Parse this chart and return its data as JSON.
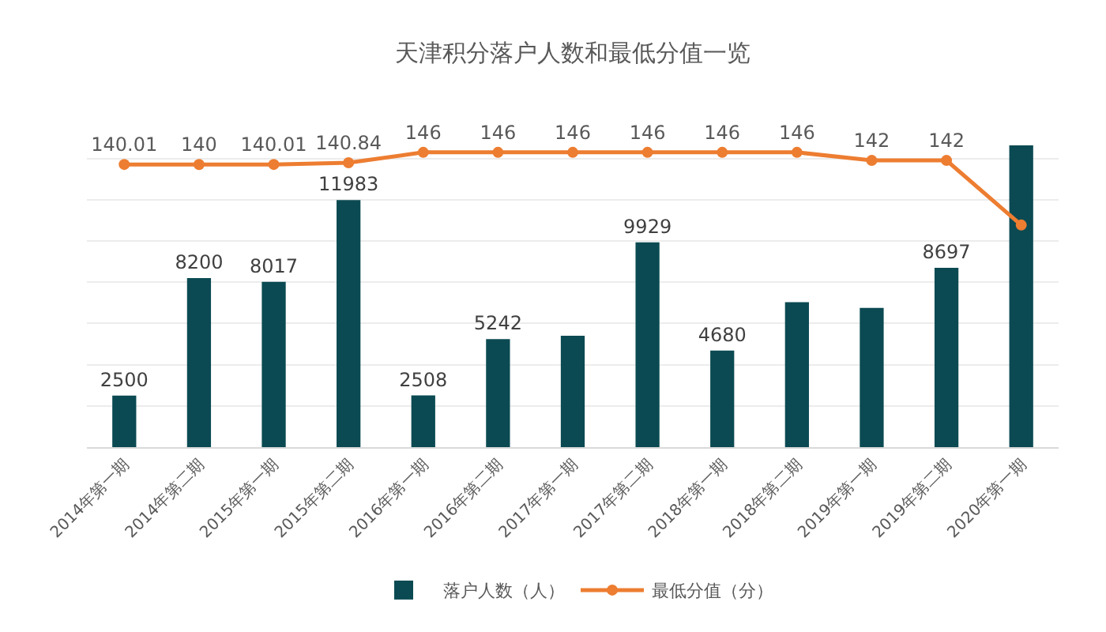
{
  "chart_data": {
    "type": "bar",
    "title": "天津积分落户人数和最低分值一览",
    "categories": [
      "2014年第一期",
      "2014年第二期",
      "2015年第一期",
      "2015年第二期",
      "2016年第一期",
      "2016年第二期",
      "2017年第一期",
      "2017年第二期",
      "2018年第一期",
      "2018年第二期",
      "2019年第一期",
      "2019年第二期",
      "2020年第一期"
    ],
    "series": [
      {
        "name": "落户人数（人）",
        "color": "#0b4a52",
        "values": [
          2500,
          8200,
          8017,
          11983,
          2508,
          5242,
          5400,
          9929,
          4680,
          7030,
          6750,
          8697,
          14630
        ],
        "value_labels": [
          "2500",
          "8200",
          "8017",
          "11983",
          "2508",
          "5242",
          null,
          "9929",
          "4680",
          null,
          null,
          "8697",
          null
        ]
      },
      {
        "name": "最低分值（分）",
        "type": "line",
        "axis": "y2",
        "color": "#ed7d31",
        "values": [
          140.01,
          140,
          140.01,
          140.84,
          146,
          146,
          146,
          146,
          146,
          146,
          142,
          142,
          110
        ],
        "value_labels": [
          "140.01",
          "140",
          "140.01",
          "140.84",
          "146",
          "146",
          "146",
          "146",
          "146",
          "146",
          "142",
          "142",
          null
        ]
      }
    ],
    "yticks": [
      {
        "value": 0,
        "label": null
      },
      {
        "value": 2000,
        "label": null
      },
      {
        "value": 4000,
        "label": null
      },
      {
        "value": 6000,
        "label": null
      },
      {
        "value": 8000,
        "label": null
      },
      {
        "value": 10000,
        "label": null
      },
      {
        "value": 12000,
        "label": null
      },
      {
        "value": 14000,
        "label": null
      }
    ],
    "grid": "y",
    "legend": "bottom",
    "tick_labels": "x",
    "marker": "circle"
  }
}
